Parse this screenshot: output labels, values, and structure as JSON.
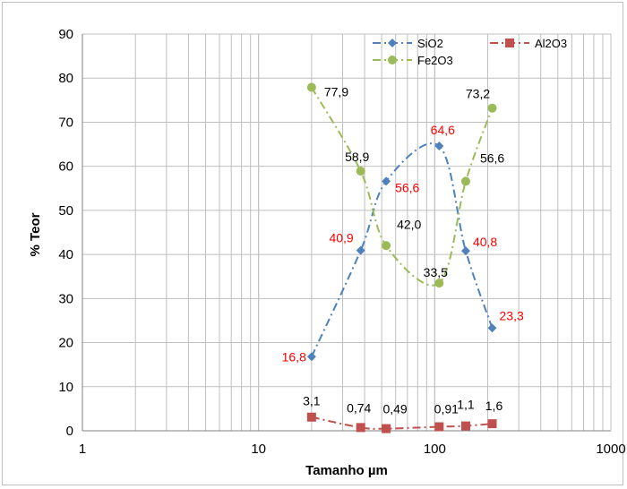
{
  "chart_data": {
    "type": "scatter",
    "xlabel": "Tamanho µm",
    "ylabel": "% Teor",
    "xscale": "log",
    "xlim": [
      1,
      1000
    ],
    "ylim": [
      0,
      90
    ],
    "grid": true,
    "legend_position": "top-right",
    "x_tick_labels": [
      "1",
      "10",
      "100",
      "1000"
    ],
    "y_tick_labels": [
      "0",
      "10",
      "20",
      "30",
      "40",
      "50",
      "60",
      "70",
      "80",
      "90"
    ],
    "series": [
      {
        "name": "SiO2",
        "color": "#4f81bd",
        "marker": "diamond",
        "line_style": "dash-dot",
        "label_color": "#ff0000",
        "x": [
          20,
          38,
          53,
          106,
          150,
          212
        ],
        "values": [
          16.8,
          40.9,
          56.6,
          64.6,
          40.8,
          23.3
        ],
        "labels": [
          "16,8",
          "40,9",
          "56,6",
          "64,6",
          "40,8",
          "23,3"
        ]
      },
      {
        "name": "Fe2O3",
        "color": "#9bbb59",
        "marker": "circle",
        "line_style": "dash-dot",
        "label_color": "#000000",
        "x": [
          20,
          38,
          53,
          106,
          150,
          212
        ],
        "values": [
          77.9,
          58.9,
          42.0,
          33.5,
          56.6,
          73.2
        ],
        "labels": [
          "77,9",
          "58,9",
          "42,0",
          "33,5",
          "56,6",
          "73,2"
        ]
      },
      {
        "name": "Al2O3",
        "color": "#c0504d",
        "marker": "square",
        "line_style": "dash-dot",
        "label_color": "#000000",
        "x": [
          20,
          38,
          53,
          106,
          150,
          212
        ],
        "values": [
          3.1,
          0.74,
          0.49,
          0.91,
          1.1,
          1.6
        ],
        "labels": [
          "3,1",
          "0,74",
          "0,49",
          "0,91",
          "1,1",
          "1,6"
        ]
      }
    ]
  }
}
